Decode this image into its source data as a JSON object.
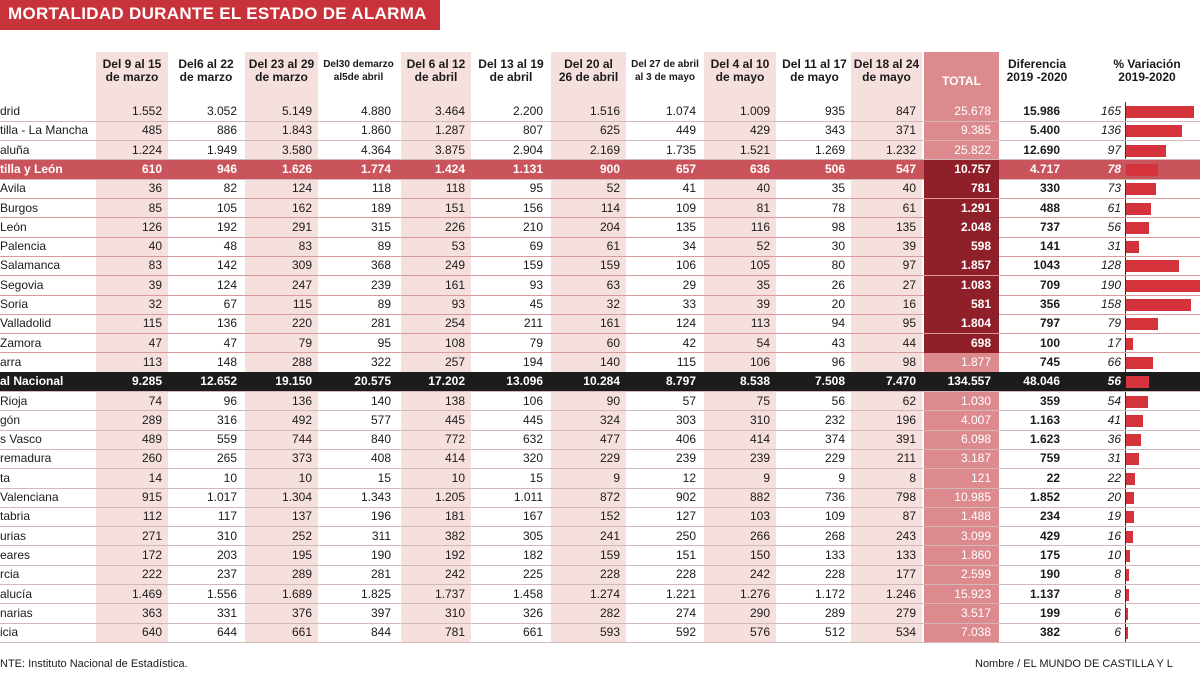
{
  "page": {
    "title": "MORTALIDAD DURANTE EL ESTADO DE ALARMA",
    "source": "NTE:  Instituto Nacional de Estadística.",
    "credit": "Nombre / EL MUNDO DE CASTILLA Y L"
  },
  "colors": {
    "accent": "#c8323a",
    "bar": "#d4333b",
    "highlight": "#c9545c",
    "national": "#1c1c1c",
    "total_col": "#dd8a8f",
    "total_col_dark": "#8f1f28"
  },
  "chart_data": {
    "type": "table",
    "title": "MORTALIDAD DURANTE EL ESTADO DE ALARMA",
    "columns": [
      "Del 9 al 15\nde marzo",
      "Del6 al 22\nde marzo",
      "Del 23 al 29\nde marzo",
      "Del30 demarzo\nal5de abril",
      "Del 6 al 12\nde abril",
      "Del 13 al 19\nde abril",
      "Del 20 al\n26 de abril",
      "Del 27 de abril\nal 3 de mayo",
      "Del 4 al 10\nde mayo",
      "Del 11 al 17\nde mayo",
      "Del 18 al 24\nde mayo",
      "TOTAL",
      "Diferencia\n2019 -2020",
      "% Variación\n2019-2020"
    ],
    "rows": [
      {
        "region": "drid",
        "values": [
          "1.552",
          "3.052",
          "5.149",
          "4.880",
          "3.464",
          "2.200",
          "1.516",
          "1.074",
          "1.009",
          "935",
          "847"
        ],
        "total": "25.678",
        "diff": "15.986",
        "pct": 165,
        "style": "normal"
      },
      {
        "region": "tilla - La Mancha",
        "values": [
          "485",
          "886",
          "1.843",
          "1.860",
          "1.287",
          "807",
          "625",
          "449",
          "429",
          "343",
          "371"
        ],
        "total": "9.385",
        "diff": "5.400",
        "pct": 136,
        "style": "normal"
      },
      {
        "region": "aluña",
        "values": [
          "1.224",
          "1.949",
          "3.580",
          "4.364",
          "3.875",
          "2.904",
          "2.169",
          "1.735",
          "1.521",
          "1.269",
          "1.232"
        ],
        "total": "25.822",
        "diff": "12.690",
        "pct": 97,
        "style": "normal"
      },
      {
        "region": "tilla y León",
        "values": [
          "610",
          "946",
          "1.626",
          "1.774",
          "1.424",
          "1.131",
          "900",
          "657",
          "636",
          "506",
          "547"
        ],
        "total": "10.757",
        "diff": "4.717",
        "pct": 78,
        "style": "highlight"
      },
      {
        "region": "Avila",
        "values": [
          "36",
          "82",
          "124",
          "118",
          "118",
          "95",
          "52",
          "41",
          "40",
          "35",
          "40"
        ],
        "total": "781",
        "diff": "330",
        "pct": 73,
        "style": "sub"
      },
      {
        "region": "Burgos",
        "values": [
          "85",
          "105",
          "162",
          "189",
          "151",
          "156",
          "114",
          "109",
          "81",
          "78",
          "61"
        ],
        "total": "1.291",
        "diff": "488",
        "pct": 61,
        "style": "sub"
      },
      {
        "region": "León",
        "values": [
          "126",
          "192",
          "291",
          "315",
          "226",
          "210",
          "204",
          "135",
          "116",
          "98",
          "135"
        ],
        "total": "2.048",
        "diff": "737",
        "pct": 56,
        "style": "sub"
      },
      {
        "region": "Palencia",
        "values": [
          "40",
          "48",
          "83",
          "89",
          "53",
          "69",
          "61",
          "34",
          "52",
          "30",
          "39"
        ],
        "total": "598",
        "diff": "141",
        "pct": 31,
        "style": "sub"
      },
      {
        "region": "Salamanca",
        "values": [
          "83",
          "142",
          "309",
          "368",
          "249",
          "159",
          "159",
          "106",
          "105",
          "80",
          "97"
        ],
        "total": "1.857",
        "diff": "1043",
        "pct": 128,
        "style": "sub"
      },
      {
        "region": "Segovia",
        "values": [
          "39",
          "124",
          "247",
          "239",
          "161",
          "93",
          "63",
          "29",
          "35",
          "26",
          "27"
        ],
        "total": "1.083",
        "diff": "709",
        "pct": 190,
        "style": "sub"
      },
      {
        "region": "Soria",
        "values": [
          "32",
          "67",
          "115",
          "89",
          "93",
          "45",
          "32",
          "33",
          "39",
          "20",
          "16"
        ],
        "total": "581",
        "diff": "356",
        "pct": 158,
        "style": "sub"
      },
      {
        "region": "Valladolid",
        "values": [
          "115",
          "136",
          "220",
          "281",
          "254",
          "211",
          "161",
          "124",
          "113",
          "94",
          "95"
        ],
        "total": "1.804",
        "diff": "797",
        "pct": 79,
        "style": "sub"
      },
      {
        "region": "Zamora",
        "values": [
          "47",
          "47",
          "79",
          "95",
          "108",
          "79",
          "60",
          "42",
          "54",
          "43",
          "44"
        ],
        "total": "698",
        "diff": "100",
        "pct": 17,
        "style": "sub"
      },
      {
        "region": "arra",
        "values": [
          "113",
          "148",
          "288",
          "322",
          "257",
          "194",
          "140",
          "115",
          "106",
          "96",
          "98"
        ],
        "total": "1.877",
        "diff": "745",
        "pct": 66,
        "style": "normal"
      },
      {
        "region": "al Nacional",
        "values": [
          "9.285",
          "12.652",
          "19.150",
          "20.575",
          "17.202",
          "13.096",
          "10.284",
          "8.797",
          "8.538",
          "7.508",
          "7.470"
        ],
        "total": "134.557",
        "diff": "48.046",
        "pct": 56,
        "style": "national"
      },
      {
        "region": "Rioja",
        "values": [
          "74",
          "96",
          "136",
          "140",
          "138",
          "106",
          "90",
          "57",
          "75",
          "56",
          "62"
        ],
        "total": "1.030",
        "diff": "359",
        "pct": 54,
        "style": "normal"
      },
      {
        "region": "gón",
        "values": [
          "289",
          "316",
          "492",
          "577",
          "445",
          "445",
          "324",
          "303",
          "310",
          "232",
          "196"
        ],
        "total": "4.007",
        "diff": "1.163",
        "pct": 41,
        "style": "normal"
      },
      {
        "region": "s Vasco",
        "values": [
          "489",
          "559",
          "744",
          "840",
          "772",
          "632",
          "477",
          "406",
          "414",
          "374",
          "391"
        ],
        "total": "6.098",
        "diff": "1.623",
        "pct": 36,
        "style": "normal"
      },
      {
        "region": "remadura",
        "values": [
          "260",
          "265",
          "373",
          "408",
          "414",
          "320",
          "229",
          "239",
          "239",
          "229",
          "211"
        ],
        "total": "3.187",
        "diff": "759",
        "pct": 31,
        "style": "normal"
      },
      {
        "region": "ta",
        "values": [
          "14",
          "10",
          "10",
          "15",
          "10",
          "15",
          "9",
          "12",
          "9",
          "9",
          "8"
        ],
        "total": "121",
        "diff": "22",
        "pct": 22,
        "style": "normal"
      },
      {
        "region": "Valenciana",
        "values": [
          "915",
          "1.017",
          "1.304",
          "1.343",
          "1.205",
          "1.011",
          "872",
          "902",
          "882",
          "736",
          "798"
        ],
        "total": "10.985",
        "diff": "1.852",
        "pct": 20,
        "style": "normal"
      },
      {
        "region": "tabria",
        "values": [
          "112",
          "117",
          "137",
          "196",
          "181",
          "167",
          "152",
          "127",
          "103",
          "109",
          "87"
        ],
        "total": "1.488",
        "diff": "234",
        "pct": 19,
        "style": "normal"
      },
      {
        "region": "urias",
        "values": [
          "271",
          "310",
          "252",
          "311",
          "382",
          "305",
          "241",
          "250",
          "266",
          "268",
          "243"
        ],
        "total": "3.099",
        "diff": "429",
        "pct": 16,
        "style": "normal"
      },
      {
        "region": "eares",
        "values": [
          "172",
          "203",
          "195",
          "190",
          "192",
          "182",
          "159",
          "151",
          "150",
          "133",
          "133"
        ],
        "total": "1.860",
        "diff": "175",
        "pct": 10,
        "style": "normal"
      },
      {
        "region": "rcia",
        "values": [
          "222",
          "237",
          "289",
          "281",
          "242",
          "225",
          "228",
          "228",
          "242",
          "228",
          "177"
        ],
        "total": "2.599",
        "diff": "190",
        "pct": 8,
        "style": "normal"
      },
      {
        "region": "alucía",
        "values": [
          "1.469",
          "1.556",
          "1.689",
          "1.825",
          "1.737",
          "1.458",
          "1.274",
          "1.221",
          "1.276",
          "1.172",
          "1.246"
        ],
        "total": "15.923",
        "diff": "1.137",
        "pct": 8,
        "style": "normal"
      },
      {
        "region": "narias",
        "values": [
          "363",
          "331",
          "376",
          "397",
          "310",
          "326",
          "282",
          "274",
          "290",
          "289",
          "279"
        ],
        "total": "3.517",
        "diff": "199",
        "pct": 6,
        "style": "normal"
      },
      {
        "region": "icia",
        "values": [
          "640",
          "644",
          "661",
          "844",
          "781",
          "661",
          "593",
          "592",
          "576",
          "512",
          "534"
        ],
        "total": "7.038",
        "diff": "382",
        "pct": 6,
        "style": "normal"
      }
    ],
    "pct_axis_max": 190
  }
}
